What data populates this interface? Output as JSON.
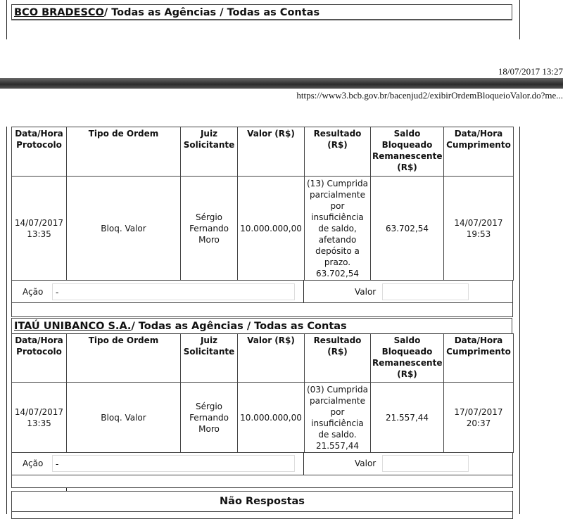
{
  "top": {
    "bank_link": "BCO BRADESCO",
    "bank_rest": "/ Todas as Agências / Todas as Contas"
  },
  "print_header": {
    "datetime": "18/07/2017 13:27",
    "url": "https://www3.bcb.gov.br/bacenjud2/exibirOrdemBloqueioValor.do?me..."
  },
  "columns": [
    "Data/Hora Protocolo",
    "Tipo de Ordem",
    "Juiz Solicitante",
    "Valor (R$)",
    "Resultado (R$)",
    "Saldo Bloqueado Remanescente (R$)",
    "Data/Hora Cumprimento"
  ],
  "blocks": [
    {
      "row": {
        "protocolo": "14/07/2017 13:35",
        "tipo": "Bloq. Valor",
        "juiz": "Sérgio Fernando Moro",
        "valor": "10.000.000,00",
        "resultado": "(13) Cumprida parcialmente por insuficiência de saldo, afetando depósito a prazo. 63.702,54",
        "saldo": "63.702,54",
        "cumprimento": "14/07/2017 19:53"
      },
      "acao_label": "Ação",
      "acao_value": "-",
      "valor_label": "Valor",
      "valor_value": ""
    },
    {
      "bank_link": "ITAÚ UNIBANCO S.A.",
      "bank_rest": "/ Todas as Agências / Todas as Contas",
      "row": {
        "protocolo": "14/07/2017 13:35",
        "tipo": "Bloq. Valor",
        "juiz": "Sérgio Fernando Moro",
        "valor": "10.000.000,00",
        "resultado": "(03) Cumprida parcialmente por insuficiência de saldo. 21.557,44",
        "saldo": "21.557,44",
        "cumprimento": "17/07/2017 20:37"
      },
      "acao_label": "Ação",
      "acao_value": "-",
      "valor_label": "Valor",
      "valor_value": ""
    }
  ],
  "nao_respostas": "Não Respostas",
  "colors": {
    "bar": "#3a3a3a"
  }
}
